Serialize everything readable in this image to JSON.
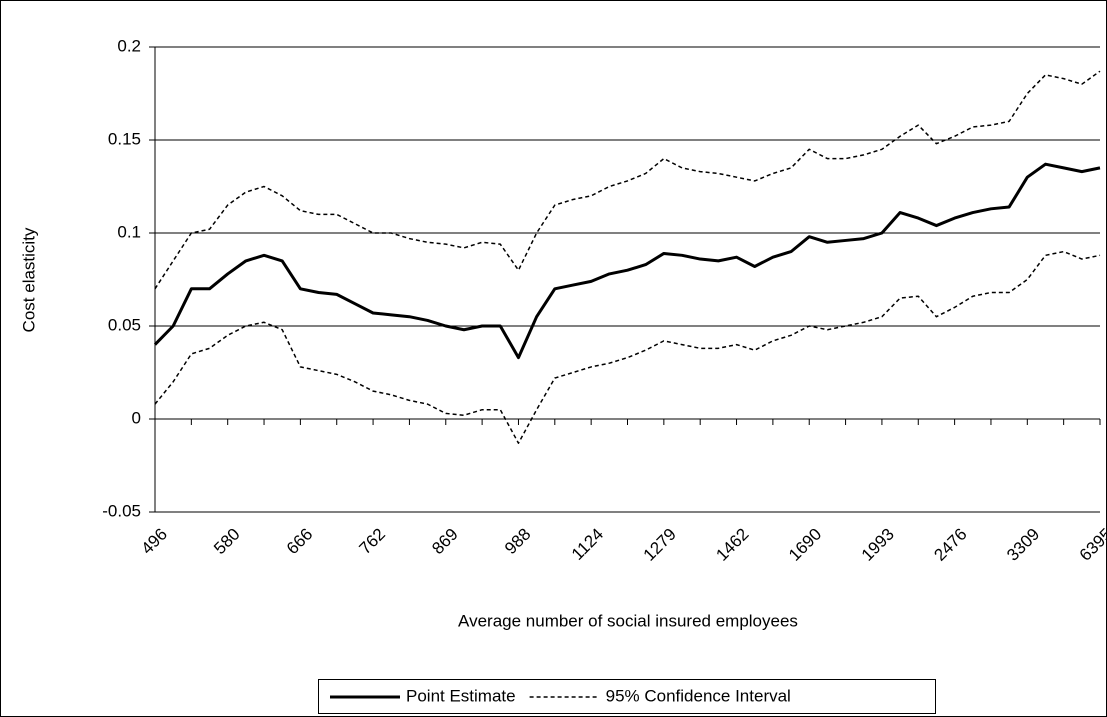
{
  "chart_data": {
    "type": "line",
    "x_label": "Average number of social insured employees",
    "y_label": "Cost elasticity",
    "categories": [
      "496",
      null,
      null,
      null,
      "580",
      null,
      null,
      null,
      "666",
      null,
      null,
      null,
      "762",
      null,
      null,
      null,
      "869",
      null,
      null,
      null,
      "988",
      null,
      null,
      null,
      "1124",
      null,
      null,
      null,
      "1279",
      null,
      null,
      null,
      "1462",
      null,
      null,
      null,
      "1690",
      null,
      null,
      null,
      "1993",
      null,
      null,
      null,
      "2476",
      null,
      null,
      null,
      "3309",
      null,
      null,
      null,
      "6395"
    ],
    "series": [
      {
        "name": "Point Estimate",
        "color": "#000000",
        "style": "solid",
        "values": [
          0.04,
          0.05,
          0.07,
          0.07,
          0.078,
          0.085,
          0.088,
          0.085,
          0.07,
          0.068,
          0.067,
          0.062,
          0.057,
          0.056,
          0.055,
          0.053,
          0.05,
          0.048,
          0.05,
          0.05,
          0.033,
          0.055,
          0.07,
          0.072,
          0.074,
          0.078,
          0.08,
          0.083,
          0.089,
          0.088,
          0.086,
          0.085,
          0.087,
          0.082,
          0.087,
          0.09,
          0.098,
          0.095,
          0.096,
          0.097,
          0.1,
          0.111,
          0.108,
          0.104,
          0.108,
          0.111,
          0.113,
          0.114,
          0.13,
          0.137,
          0.135,
          0.133,
          0.135
        ]
      },
      {
        "name": "95% Confidence Interval",
        "color": "#000000",
        "style": "dashed",
        "values": [
          0.07,
          0.085,
          0.1,
          0.102,
          0.115,
          0.122,
          0.125,
          0.12,
          0.112,
          0.11,
          0.11,
          0.105,
          0.1,
          0.1,
          0.097,
          0.095,
          0.094,
          0.092,
          0.095,
          0.094,
          0.08,
          0.1,
          0.115,
          0.118,
          0.12,
          0.125,
          0.128,
          0.132,
          0.14,
          0.135,
          0.133,
          0.132,
          0.13,
          0.128,
          0.132,
          0.135,
          0.145,
          0.14,
          0.14,
          0.142,
          0.145,
          0.152,
          0.158,
          0.148,
          0.152,
          0.157,
          0.158,
          0.16,
          0.175,
          0.185,
          0.183,
          0.18,
          0.187
        ]
      },
      {
        "color": "#000000",
        "style": "dashed",
        "values": [
          0.008,
          0.02,
          0.035,
          0.038,
          0.045,
          0.05,
          0.052,
          0.048,
          0.028,
          0.026,
          0.024,
          0.02,
          0.015,
          0.013,
          0.01,
          0.008,
          0.003,
          0.002,
          0.005,
          0.005,
          -0.013,
          0.005,
          0.022,
          0.025,
          0.028,
          0.03,
          0.033,
          0.037,
          0.042,
          0.04,
          0.038,
          0.038,
          0.04,
          0.037,
          0.042,
          0.045,
          0.05,
          0.048,
          0.05,
          0.052,
          0.055,
          0.065,
          0.066,
          0.055,
          0.06,
          0.066,
          0.068,
          0.068,
          0.075,
          0.088,
          0.09,
          0.086,
          0.088
        ]
      }
    ],
    "ylim": [
      -0.05,
      0.2
    ],
    "yticks": [
      -0.05,
      0,
      0.05,
      0.1,
      0.15,
      0.2
    ],
    "grid": true,
    "legend": "bottom"
  }
}
